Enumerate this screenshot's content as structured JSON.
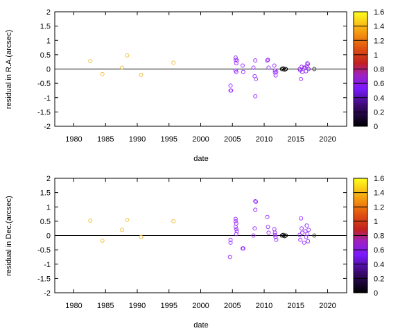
{
  "chart_data": [
    {
      "type": "scatter",
      "xlabel": "date",
      "ylabel": "residual in R.A.(arcsec)",
      "xlim": [
        1977,
        2023
      ],
      "ylim": [
        -2,
        2
      ],
      "xticks": [
        1980,
        1985,
        1990,
        1995,
        2000,
        2005,
        2010,
        2015,
        2020
      ],
      "yticks": [
        -2,
        -1.5,
        -1,
        -0.5,
        0,
        0.5,
        1,
        1.5,
        2
      ],
      "reference_line_y": 0,
      "colorbar": {
        "range": [
          0,
          1.6
        ],
        "ticks": [
          0,
          0.2,
          0.4,
          0.6,
          0.8,
          1,
          1.2,
          1.4,
          1.6
        ]
      },
      "points": [
        {
          "x": 1982.6,
          "y": 0.28,
          "c": 1.5
        },
        {
          "x": 1984.5,
          "y": -0.18,
          "c": 1.5
        },
        {
          "x": 1987.6,
          "y": 0.05,
          "c": 1.5
        },
        {
          "x": 1988.4,
          "y": 0.48,
          "c": 1.5
        },
        {
          "x": 1990.6,
          "y": -0.2,
          "c": 1.5
        },
        {
          "x": 1995.7,
          "y": 0.22,
          "c": 1.5
        },
        {
          "x": 2004.7,
          "y": -0.58,
          "c": 0.55
        },
        {
          "x": 2004.7,
          "y": -0.75,
          "c": 0.55
        },
        {
          "x": 2004.8,
          "y": -0.75,
          "c": 0.55
        },
        {
          "x": 2005.5,
          "y": 0.4,
          "c": 0.55
        },
        {
          "x": 2005.5,
          "y": 0.32,
          "c": 0.55
        },
        {
          "x": 2005.6,
          "y": 0.2,
          "c": 0.55
        },
        {
          "x": 2005.5,
          "y": -0.05,
          "c": 0.55
        },
        {
          "x": 2005.6,
          "y": -0.1,
          "c": 0.55
        },
        {
          "x": 2005.7,
          "y": 0.3,
          "c": 0.55
        },
        {
          "x": 2006.6,
          "y": 0.12,
          "c": 0.55
        },
        {
          "x": 2006.7,
          "y": -0.1,
          "c": 0.55
        },
        {
          "x": 2008.3,
          "y": 0.05,
          "c": 0.55
        },
        {
          "x": 2008.5,
          "y": -0.25,
          "c": 0.55
        },
        {
          "x": 2008.6,
          "y": 0.3,
          "c": 0.55
        },
        {
          "x": 2008.7,
          "y": -0.35,
          "c": 0.55
        },
        {
          "x": 2008.6,
          "y": -0.95,
          "c": 0.55
        },
        {
          "x": 2010.5,
          "y": 0.3,
          "c": 0.55
        },
        {
          "x": 2010.6,
          "y": 0.32,
          "c": 0.55
        },
        {
          "x": 2010.7,
          "y": 0.05,
          "c": 0.55
        },
        {
          "x": 2011.6,
          "y": 0.12,
          "c": 0.45
        },
        {
          "x": 2011.7,
          "y": -0.05,
          "c": 0.45
        },
        {
          "x": 2011.7,
          "y": -0.12,
          "c": 0.45
        },
        {
          "x": 2011.8,
          "y": -0.22,
          "c": 0.45
        },
        {
          "x": 2011.9,
          "y": -0.1,
          "c": 0.45
        },
        {
          "x": 2012.8,
          "y": 0.0,
          "c": 0.1
        },
        {
          "x": 2013.0,
          "y": 0.02,
          "c": 0.1
        },
        {
          "x": 2013.2,
          "y": -0.02,
          "c": 0.1
        },
        {
          "x": 2013.4,
          "y": 0.0,
          "c": 0.1
        },
        {
          "x": 2015.6,
          "y": 0.0,
          "c": 0.55
        },
        {
          "x": 2015.7,
          "y": -0.05,
          "c": 0.55
        },
        {
          "x": 2015.8,
          "y": -0.35,
          "c": 0.55
        },
        {
          "x": 2015.9,
          "y": 0.08,
          "c": 0.55
        },
        {
          "x": 2016.0,
          "y": -0.1,
          "c": 0.55
        },
        {
          "x": 2016.3,
          "y": 0.05,
          "c": 0.55
        },
        {
          "x": 2016.5,
          "y": 0.05,
          "c": 0.55
        },
        {
          "x": 2016.6,
          "y": -0.08,
          "c": 0.55
        },
        {
          "x": 2016.7,
          "y": 0.1,
          "c": 0.55
        },
        {
          "x": 2016.8,
          "y": 0.2,
          "c": 0.55
        },
        {
          "x": 2016.9,
          "y": 0.18,
          "c": 0.55
        },
        {
          "x": 2017.0,
          "y": 0.0,
          "c": 0.55
        },
        {
          "x": 2017.9,
          "y": 0.0,
          "c": 0.2
        }
      ]
    },
    {
      "type": "scatter",
      "xlabel": "date",
      "ylabel": "residual in Dec.(arcsec)",
      "xlim": [
        1977,
        2023
      ],
      "ylim": [
        -2,
        2
      ],
      "xticks": [
        1980,
        1985,
        1990,
        1995,
        2000,
        2005,
        2010,
        2015,
        2020
      ],
      "yticks": [
        -2,
        -1.5,
        -1,
        -0.5,
        0,
        0.5,
        1,
        1.5,
        2
      ],
      "reference_line_y": 0,
      "colorbar": {
        "range": [
          0,
          1.6
        ],
        "ticks": [
          0,
          0.2,
          0.4,
          0.6,
          0.8,
          1,
          1.2,
          1.4,
          1.6
        ]
      },
      "points": [
        {
          "x": 1982.6,
          "y": 0.52,
          "c": 1.5
        },
        {
          "x": 1984.5,
          "y": -0.18,
          "c": 1.5
        },
        {
          "x": 1987.6,
          "y": 0.2,
          "c": 1.5
        },
        {
          "x": 1988.4,
          "y": 0.55,
          "c": 1.5
        },
        {
          "x": 1990.6,
          "y": -0.05,
          "c": 1.5
        },
        {
          "x": 1995.7,
          "y": 0.5,
          "c": 1.5
        },
        {
          "x": 2004.7,
          "y": -0.15,
          "c": 0.55
        },
        {
          "x": 2004.7,
          "y": -0.25,
          "c": 0.55
        },
        {
          "x": 2004.6,
          "y": -0.75,
          "c": 0.55
        },
        {
          "x": 2005.5,
          "y": 0.58,
          "c": 0.55
        },
        {
          "x": 2005.5,
          "y": 0.5,
          "c": 0.55
        },
        {
          "x": 2005.6,
          "y": 0.42,
          "c": 0.55
        },
        {
          "x": 2005.5,
          "y": 0.3,
          "c": 0.55
        },
        {
          "x": 2005.6,
          "y": 0.22,
          "c": 0.55
        },
        {
          "x": 2005.7,
          "y": 0.15,
          "c": 0.55
        },
        {
          "x": 2005.6,
          "y": 0.05,
          "c": 0.55
        },
        {
          "x": 2006.6,
          "y": -0.45,
          "c": 0.55
        },
        {
          "x": 2006.7,
          "y": -0.45,
          "c": 0.55
        },
        {
          "x": 2008.3,
          "y": 0.0,
          "c": 0.55
        },
        {
          "x": 2008.5,
          "y": 0.25,
          "c": 0.55
        },
        {
          "x": 2008.6,
          "y": 1.2,
          "c": 0.55
        },
        {
          "x": 2008.7,
          "y": 1.18,
          "c": 0.55
        },
        {
          "x": 2008.6,
          "y": 0.9,
          "c": 0.55
        },
        {
          "x": 2010.5,
          "y": 0.65,
          "c": 0.55
        },
        {
          "x": 2010.6,
          "y": 0.3,
          "c": 0.55
        },
        {
          "x": 2010.7,
          "y": 0.1,
          "c": 0.55
        },
        {
          "x": 2011.6,
          "y": 0.22,
          "c": 0.45
        },
        {
          "x": 2011.7,
          "y": 0.1,
          "c": 0.45
        },
        {
          "x": 2011.7,
          "y": 0.02,
          "c": 0.45
        },
        {
          "x": 2011.8,
          "y": -0.05,
          "c": 0.45
        },
        {
          "x": 2011.9,
          "y": -0.15,
          "c": 0.45
        },
        {
          "x": 2012.8,
          "y": 0.0,
          "c": 0.1
        },
        {
          "x": 2013.0,
          "y": 0.02,
          "c": 0.1
        },
        {
          "x": 2013.2,
          "y": -0.02,
          "c": 0.1
        },
        {
          "x": 2013.4,
          "y": 0.0,
          "c": 0.1
        },
        {
          "x": 2015.6,
          "y": 0.02,
          "c": 0.55
        },
        {
          "x": 2015.7,
          "y": -0.15,
          "c": 0.55
        },
        {
          "x": 2015.8,
          "y": 0.6,
          "c": 0.55
        },
        {
          "x": 2015.9,
          "y": 0.25,
          "c": 0.55
        },
        {
          "x": 2016.0,
          "y": 0.1,
          "c": 0.55
        },
        {
          "x": 2016.3,
          "y": -0.25,
          "c": 0.55
        },
        {
          "x": 2016.5,
          "y": 0.15,
          "c": 0.55
        },
        {
          "x": 2016.6,
          "y": -0.05,
          "c": 0.55
        },
        {
          "x": 2016.7,
          "y": 0.35,
          "c": 0.55
        },
        {
          "x": 2016.8,
          "y": 0.05,
          "c": 0.55
        },
        {
          "x": 2016.9,
          "y": -0.2,
          "c": 0.55
        },
        {
          "x": 2017.0,
          "y": 0.2,
          "c": 0.55
        },
        {
          "x": 2017.9,
          "y": 0.0,
          "c": 0.2
        }
      ]
    }
  ]
}
